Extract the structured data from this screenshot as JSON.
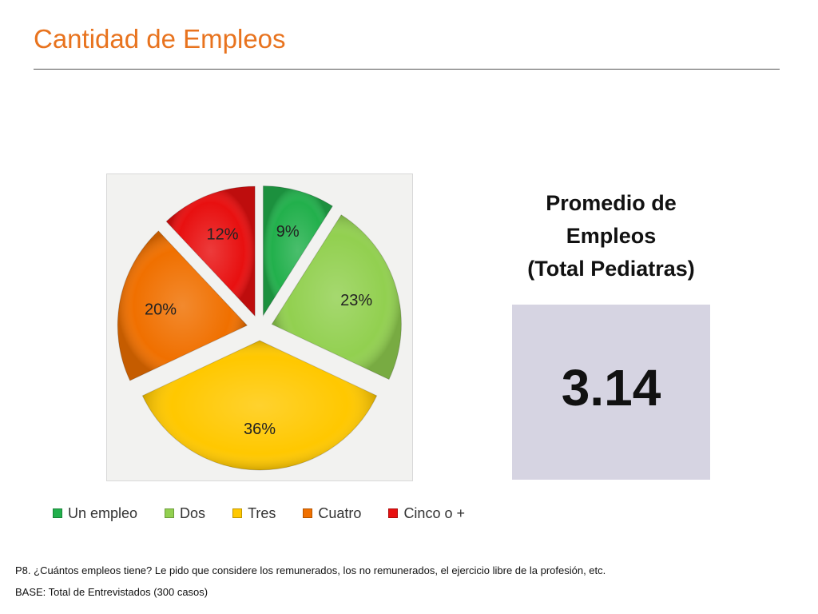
{
  "header": {
    "title": "Cantidad de Empleos"
  },
  "chart_data": {
    "type": "pie",
    "categories": [
      "Un empleo",
      "Dos",
      "Tres",
      "Cuatro",
      "Cinco o +"
    ],
    "values": [
      9,
      23,
      36,
      20,
      12
    ],
    "labels": [
      "9%",
      "23%",
      "36%",
      "20%",
      "12%"
    ],
    "colors": [
      "#22B04C",
      "#92D050",
      "#FFC800",
      "#F07000",
      "#E81010"
    ],
    "exploded": true,
    "legend_position": "bottom",
    "unit": "%"
  },
  "summary": {
    "heading_lines": [
      "Promedio de",
      "Empleos",
      "(Total Pediatras)"
    ],
    "value": "3.14"
  },
  "footnotes": {
    "question": "P8. ¿Cuántos empleos tiene? Le pido que considere los remunerados, los no remunerados, el ejercicio libre de la profesión, etc.",
    "base": "BASE: Total de Entrevistados (300 casos)"
  }
}
